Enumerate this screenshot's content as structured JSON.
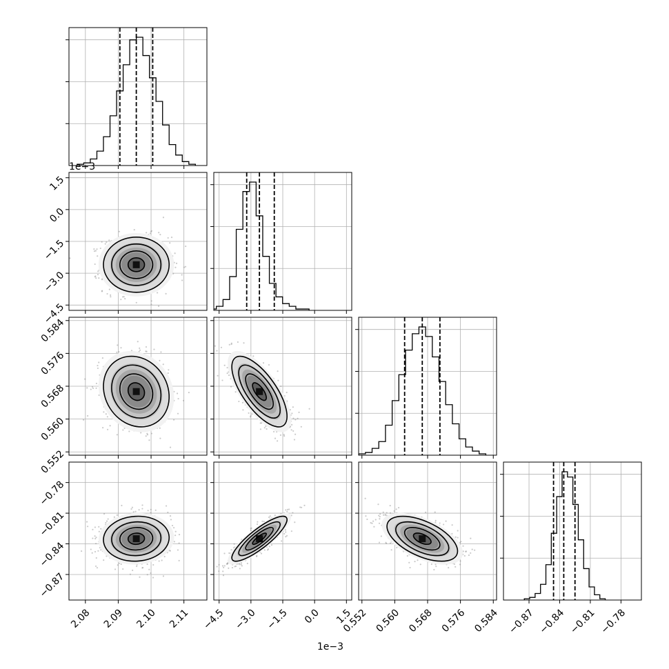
{
  "chart_data": {
    "type": "corner",
    "parameters": 4,
    "grid": true,
    "quantiles": [
      0.16,
      0.5,
      0.84
    ],
    "colors": {
      "ink": "#000000",
      "grid": "#b0b0b0",
      "density": "#000000"
    },
    "axes": [
      {
        "ticks": [
          2.08,
          2.09,
          2.1,
          2.11
        ],
        "tick_labels": [
          "2.08",
          "2.09",
          "2.10",
          "2.11"
        ],
        "range": [
          2.075,
          2.117
        ],
        "offset_label": ""
      },
      {
        "ticks": [
          -4.5,
          -3.0,
          -1.5,
          0.0,
          1.5
        ],
        "tick_labels": [
          "−4.5",
          "−3.0",
          "−1.5",
          "0.0",
          "1.5"
        ],
        "range": [
          -4.75,
          1.75
        ],
        "offset_label": "1e−3"
      },
      {
        "ticks": [
          0.552,
          0.56,
          0.568,
          0.576,
          0.584
        ],
        "tick_labels": [
          "0.552",
          "0.560",
          "0.568",
          "0.576",
          "0.584"
        ],
        "range": [
          0.5512,
          0.5848
        ],
        "offset_label": ""
      },
      {
        "ticks": [
          -0.87,
          -0.84,
          -0.81,
          -0.78
        ],
        "tick_labels": [
          "−0.87",
          "−0.84",
          "−0.81",
          "−0.78"
        ],
        "range": [
          -0.895,
          -0.76
        ],
        "offset_label": ""
      }
    ],
    "y_axis_label_tick_labels_row1": [
      "1.5",
      "0.0",
      "−1.5",
      "−3.0",
      "−4.5"
    ],
    "marginals": [
      {
        "mean": 2.0955,
        "q16": 2.0905,
        "q50": 2.0955,
        "q84": 2.1005,
        "sigma": 0.005,
        "hist": [
          1,
          2,
          5,
          11,
          22,
          38,
          57,
          77,
          96,
          98,
          84,
          67,
          49,
          31,
          16,
          8,
          3,
          1
        ]
      },
      {
        "mean": -2.6,
        "q16": -3.2,
        "q50": -2.6,
        "q84": -1.9,
        "sigma": 0.65,
        "hist": [
          1,
          3,
          8,
          25,
          60,
          88,
          95,
          70,
          40,
          20,
          10,
          5,
          3,
          1,
          1
        ]
      },
      {
        "mean": 0.5667,
        "q16": 0.5624,
        "q50": 0.5667,
        "q84": 0.571,
        "sigma": 0.0043,
        "hist": [
          1,
          2,
          5,
          10,
          22,
          40,
          59,
          77,
          89,
          94,
          87,
          72,
          54,
          37,
          23,
          12,
          6,
          3,
          1
        ]
      },
      {
        "mean": -0.835,
        "q16": -0.846,
        "q50": -0.836,
        "q84": -0.825,
        "sigma": 0.011,
        "hist": [
          1,
          2,
          5,
          12,
          27,
          51,
          79,
          98,
          94,
          73,
          46,
          24,
          10,
          4,
          1
        ]
      }
    ],
    "correlations": {
      "1-0": 0.0,
      "2-0": -0.15,
      "2-1": -0.7,
      "3-0": 0.05,
      "3-1": 0.85,
      "3-2": -0.55
    }
  }
}
